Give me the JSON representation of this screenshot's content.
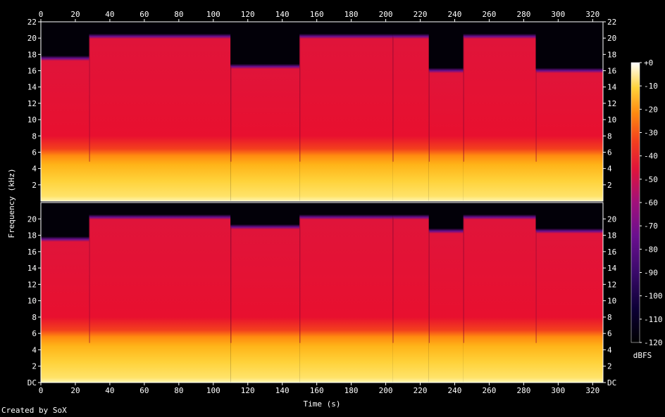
{
  "credit": "Created by SoX",
  "chart_data": {
    "type": "heatmap",
    "title": "",
    "xlabel": "Time (s)",
    "ylabel": "Frequency (kHz)",
    "colorbar_label": "dBFS",
    "xlim": [
      0,
      326
    ],
    "ylim": [
      0,
      22
    ],
    "x_ticks": [
      "0",
      "20",
      "40",
      "60",
      "80",
      "100",
      "120",
      "140",
      "160",
      "180",
      "200",
      "220",
      "240",
      "260",
      "280",
      "300",
      "320"
    ],
    "y_ticks_top": [
      "2",
      "4",
      "6",
      "8",
      "10",
      "12",
      "14",
      "16",
      "18",
      "20",
      "22"
    ],
    "y_ticks_bottom": [
      "DC",
      "2",
      "4",
      "6",
      "8",
      "10",
      "12",
      "14",
      "16",
      "18",
      "20"
    ],
    "y_ticks_bottom_values": [
      0,
      2,
      4,
      6,
      8,
      10,
      12,
      14,
      16,
      18,
      20
    ],
    "colorbar_ticks": [
      "+0",
      "-10",
      "-20",
      "-30",
      "-40",
      "-50",
      "-60",
      "-70",
      "-80",
      "-90",
      "-100",
      "-110",
      "-120"
    ],
    "colorbar_range": [
      -120,
      0
    ],
    "channels": [
      {
        "name": "",
        "segments": [
          {
            "t0": 0,
            "t1": 28,
            "cutoff_khz": 17.5
          },
          {
            "t0": 28,
            "t1": 110,
            "cutoff_khz": 20.2
          },
          {
            "t0": 110,
            "t1": 150,
            "cutoff_khz": 16.5
          },
          {
            "t0": 150,
            "t1": 204,
            "cutoff_khz": 20.2
          },
          {
            "t0": 204,
            "t1": 225,
            "cutoff_khz": 20.2
          },
          {
            "t0": 225,
            "t1": 245,
            "cutoff_khz": 16.0
          },
          {
            "t0": 245,
            "t1": 287,
            "cutoff_khz": 20.2
          },
          {
            "t0": 287,
            "t1": 326,
            "cutoff_khz": 16.0
          }
        ]
      },
      {
        "name": "",
        "segments": [
          {
            "t0": 0,
            "t1": 28,
            "cutoff_khz": 17.5
          },
          {
            "t0": 28,
            "t1": 110,
            "cutoff_khz": 20.2
          },
          {
            "t0": 110,
            "t1": 150,
            "cutoff_khz": 19.0
          },
          {
            "t0": 150,
            "t1": 204,
            "cutoff_khz": 20.2
          },
          {
            "t0": 204,
            "t1": 225,
            "cutoff_khz": 20.2
          },
          {
            "t0": 225,
            "t1": 245,
            "cutoff_khz": 18.5
          },
          {
            "t0": 245,
            "t1": 287,
            "cutoff_khz": 20.2
          },
          {
            "t0": 287,
            "t1": 326,
            "cutoff_khz": 18.5
          }
        ]
      }
    ],
    "colors": {
      "background": "#000000",
      "axis": "#ffffff",
      "low_band": "#ffd23a",
      "mid_band": "#e8102f",
      "upper_band": "#6a0f8f",
      "silence": "#020008"
    }
  }
}
